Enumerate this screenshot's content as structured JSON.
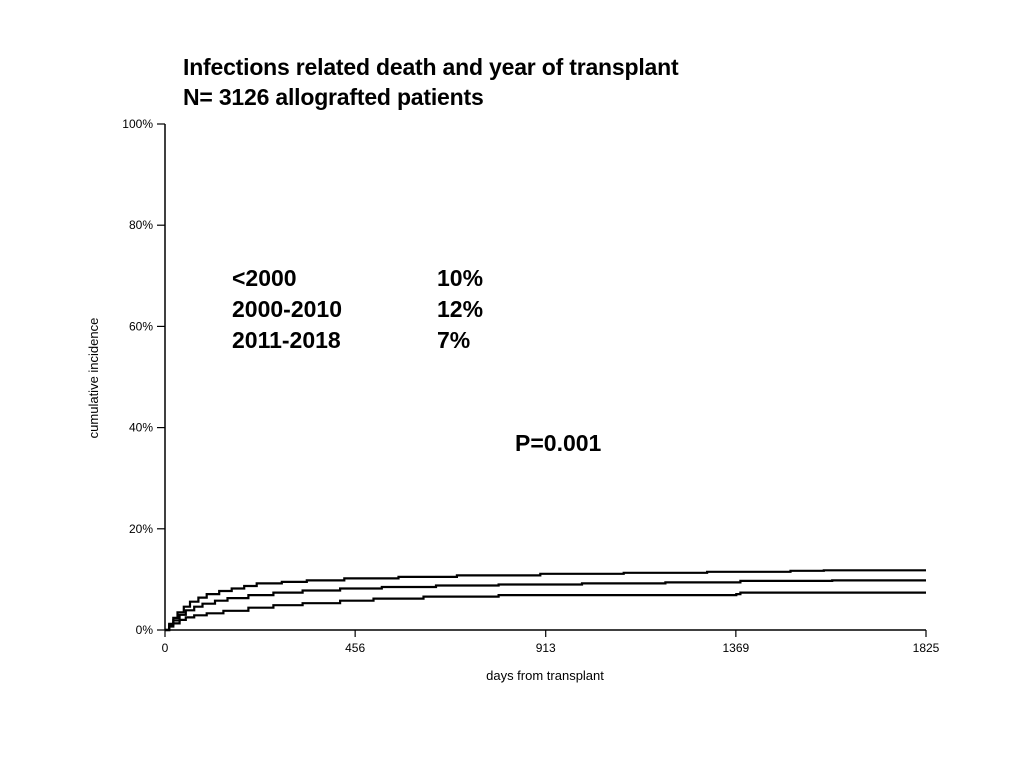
{
  "title_line1": "Infections related death and year of transplant",
  "title_line2": "N= 3126 allografted patients",
  "p_value": "P=0.001",
  "legend": [
    {
      "label": "<2000",
      "value": "10%"
    },
    {
      "label": "2000-2010",
      "value": "12%"
    },
    {
      "label": "2011-2018",
      "value": "7%"
    }
  ],
  "chart_data": {
    "type": "line",
    "title": "Infections related death and year of transplant",
    "subtitle": "N= 3126 allografted patients",
    "xlabel": "days from transplant",
    "ylabel": "cumulative incidence",
    "xlim": [
      0,
      1825
    ],
    "ylim": [
      0,
      100
    ],
    "x_ticks": [
      0,
      456,
      913,
      1369,
      1825
    ],
    "x_tick_labels": [
      "0",
      "456",
      "913",
      "1369",
      "1825"
    ],
    "y_ticks": [
      0,
      20,
      40,
      60,
      80,
      100
    ],
    "y_tick_labels": [
      "0%",
      "20%",
      "40%",
      "60%",
      "80%",
      "100%"
    ],
    "grid": false,
    "annotations": [
      "P=0.001"
    ],
    "series": [
      {
        "values": [
          [
            0,
            0
          ],
          [
            10,
            1.2
          ],
          [
            20,
            2.4
          ],
          [
            30,
            3.5
          ],
          [
            45,
            4.6
          ],
          [
            60,
            5.6
          ],
          [
            80,
            6.4
          ],
          [
            100,
            7.1
          ],
          [
            130,
            7.7
          ],
          [
            160,
            8.2
          ],
          [
            190,
            8.7
          ],
          [
            220,
            9.2
          ],
          [
            280,
            9.5
          ],
          [
            340,
            9.8
          ],
          [
            430,
            10.2
          ],
          [
            560,
            10.5
          ],
          [
            700,
            10.8
          ],
          [
            900,
            11.1
          ],
          [
            1100,
            11.3
          ],
          [
            1300,
            11.5
          ],
          [
            1500,
            11.7
          ],
          [
            1580,
            11.8
          ],
          [
            1825,
            11.8
          ]
        ]
      },
      {
        "values": [
          [
            0,
            0
          ],
          [
            10,
            1.0
          ],
          [
            20,
            1.9
          ],
          [
            35,
            3.0
          ],
          [
            50,
            3.9
          ],
          [
            70,
            4.6
          ],
          [
            90,
            5.2
          ],
          [
            120,
            5.8
          ],
          [
            150,
            6.3
          ],
          [
            200,
            6.9
          ],
          [
            260,
            7.4
          ],
          [
            330,
            7.8
          ],
          [
            420,
            8.2
          ],
          [
            520,
            8.5
          ],
          [
            650,
            8.8
          ],
          [
            800,
            9.0
          ],
          [
            1000,
            9.2
          ],
          [
            1200,
            9.4
          ],
          [
            1380,
            9.7
          ],
          [
            1600,
            9.8
          ],
          [
            1825,
            9.8
          ]
        ]
      },
      {
        "values": [
          [
            0,
            0
          ],
          [
            10,
            0.7
          ],
          [
            20,
            1.3
          ],
          [
            35,
            2.0
          ],
          [
            50,
            2.5
          ],
          [
            70,
            2.9
          ],
          [
            100,
            3.3
          ],
          [
            140,
            3.8
          ],
          [
            200,
            4.4
          ],
          [
            260,
            4.9
          ],
          [
            330,
            5.3
          ],
          [
            420,
            5.8
          ],
          [
            500,
            6.2
          ],
          [
            620,
            6.6
          ],
          [
            800,
            6.9
          ],
          [
            1000,
            6.9
          ],
          [
            1370,
            7.1
          ],
          [
            1380,
            7.4
          ],
          [
            1825,
            7.4
          ]
        ]
      }
    ]
  }
}
